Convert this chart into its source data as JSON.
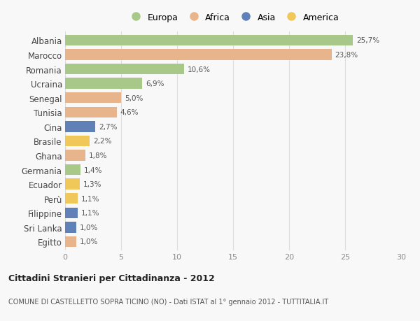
{
  "countries": [
    "Albania",
    "Marocco",
    "Romania",
    "Ucraina",
    "Senegal",
    "Tunisia",
    "Cina",
    "Brasile",
    "Ghana",
    "Germania",
    "Ecuador",
    "Perù",
    "Filippine",
    "Sri Lanka",
    "Egitto"
  ],
  "values": [
    25.7,
    23.8,
    10.6,
    6.9,
    5.0,
    4.6,
    2.7,
    2.2,
    1.8,
    1.4,
    1.3,
    1.1,
    1.1,
    1.0,
    1.0
  ],
  "labels": [
    "25,7%",
    "23,8%",
    "10,6%",
    "6,9%",
    "5,0%",
    "4,6%",
    "2,7%",
    "2,2%",
    "1,8%",
    "1,4%",
    "1,3%",
    "1,1%",
    "1,1%",
    "1,0%",
    "1,0%"
  ],
  "continents": [
    "Europa",
    "Africa",
    "Europa",
    "Europa",
    "Africa",
    "Africa",
    "Asia",
    "America",
    "Africa",
    "Europa",
    "America",
    "America",
    "Asia",
    "Asia",
    "Africa"
  ],
  "colors": {
    "Europa": "#a8c88a",
    "Africa": "#e8b48c",
    "Asia": "#6080b8",
    "America": "#f0c85a"
  },
  "legend_order": [
    "Europa",
    "Africa",
    "Asia",
    "America"
  ],
  "title": "Cittadini Stranieri per Cittadinanza - 2012",
  "subtitle": "COMUNE DI CASTELLETTO SOPRA TICINO (NO) - Dati ISTAT al 1° gennaio 2012 - TUTTITALIA.IT",
  "xlim": [
    0,
    30
  ],
  "xticks": [
    0,
    5,
    10,
    15,
    20,
    25,
    30
  ],
  "background_color": "#f8f8f8",
  "grid_color": "#dddddd",
  "bar_height": 0.75
}
